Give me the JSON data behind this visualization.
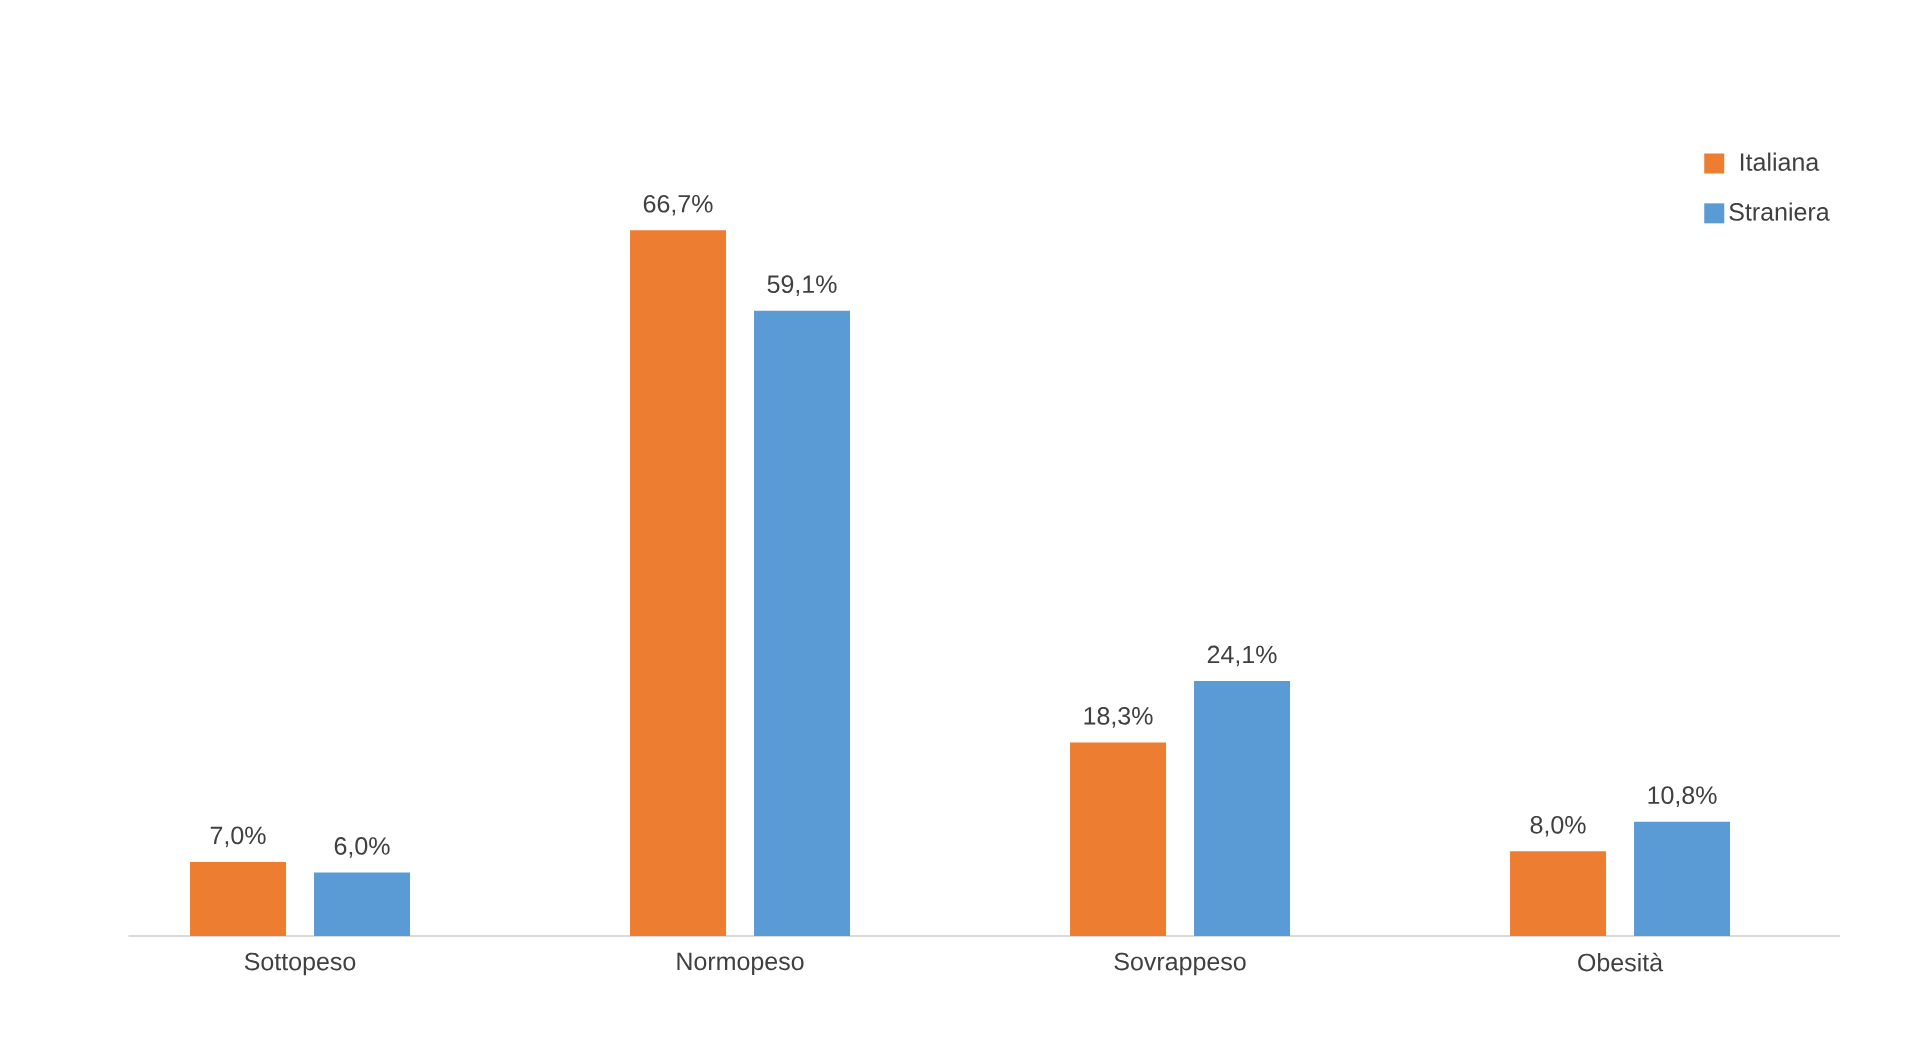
{
  "chart_data": {
    "type": "bar",
    "categories": [
      "Sottopeso",
      "Normopeso",
      "Sovrappeso",
      "Obesità"
    ],
    "series": [
      {
        "name": "Italiana",
        "color": "#ed7d31",
        "values": [
          7.0,
          66.7,
          18.3,
          8.0
        ],
        "value_labels": [
          "7,0%",
          "66,7%",
          "18,3%",
          "8,0%"
        ]
      },
      {
        "name": "Straniera",
        "color": "#5b9bd5",
        "values": [
          6.0,
          59.1,
          24.1,
          10.8
        ],
        "value_labels": [
          "6,0%",
          "59,1%",
          "24,1%",
          "10,8%"
        ]
      }
    ],
    "legend": "top right"
  }
}
